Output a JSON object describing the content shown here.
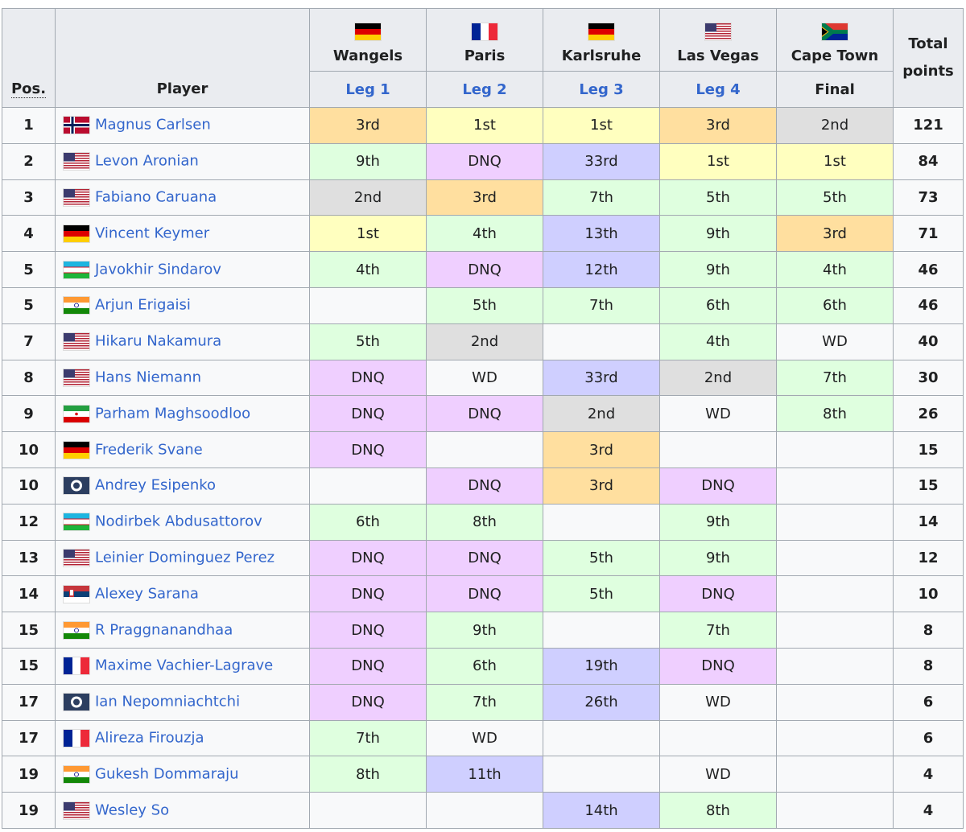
{
  "header": {
    "pos": "Pos.",
    "player": "Player",
    "total": "Total points",
    "venues": [
      {
        "city": "Wangels",
        "stage": "Leg 1"
      },
      {
        "city": "Paris",
        "stage": "Leg 2"
      },
      {
        "city": "Karlsruhe",
        "stage": "Leg 3"
      },
      {
        "city": "Las Vegas",
        "stage": "Leg 4"
      },
      {
        "city": "Cape Town",
        "stage": "Final"
      }
    ]
  },
  "rows": [
    {
      "pos": 1,
      "player": "Magnus Carlsen",
      "results": [
        "3rd",
        "1st",
        "1st",
        "3rd",
        "2nd"
      ],
      "total": 121
    },
    {
      "pos": 2,
      "player": "Levon Aronian",
      "results": [
        "9th",
        "DNQ",
        "33rd",
        "1st",
        "1st"
      ],
      "total": 84
    },
    {
      "pos": 3,
      "player": "Fabiano Caruana",
      "results": [
        "2nd",
        "3rd",
        "7th",
        "5th",
        "5th"
      ],
      "total": 73
    },
    {
      "pos": 4,
      "player": "Vincent Keymer",
      "results": [
        "1st",
        "4th",
        "13th",
        "9th",
        "3rd"
      ],
      "total": 71
    },
    {
      "pos": 5,
      "player": "Javokhir Sindarov",
      "results": [
        "4th",
        "DNQ",
        "12th",
        "9th",
        "4th"
      ],
      "total": 46
    },
    {
      "pos": 5,
      "player": "Arjun Erigaisi",
      "results": [
        null,
        "5th",
        "7th",
        "6th",
        "6th"
      ],
      "total": 46
    },
    {
      "pos": 7,
      "player": "Hikaru Nakamura",
      "results": [
        "5th",
        "2nd",
        null,
        "4th",
        "WD"
      ],
      "total": 40
    },
    {
      "pos": 8,
      "player": "Hans Niemann",
      "results": [
        "DNQ",
        "WD",
        "33rd",
        "2nd",
        "7th"
      ],
      "total": 30
    },
    {
      "pos": 9,
      "player": "Parham Maghsoodloo",
      "results": [
        "DNQ",
        "DNQ",
        "2nd",
        "WD",
        "8th"
      ],
      "total": 26
    },
    {
      "pos": 10,
      "player": "Frederik Svane",
      "results": [
        "DNQ",
        null,
        "3rd",
        null,
        null
      ],
      "total": 15
    },
    {
      "pos": 10,
      "player": "Andrey Esipenko",
      "results": [
        null,
        "DNQ",
        "3rd",
        "DNQ",
        null
      ],
      "total": 15
    },
    {
      "pos": 12,
      "player": "Nodirbek Abdusattorov",
      "results": [
        "6th",
        "8th",
        null,
        "9th",
        null
      ],
      "total": 14
    },
    {
      "pos": 13,
      "player": "Leinier Dominguez Perez",
      "results": [
        "DNQ",
        "DNQ",
        "5th",
        "9th",
        null
      ],
      "total": 12
    },
    {
      "pos": 14,
      "player": "Alexey Sarana",
      "results": [
        "DNQ",
        "DNQ",
        "5th",
        "DNQ",
        null
      ],
      "total": 10
    },
    {
      "pos": 15,
      "player": "R Praggnanandhaa",
      "results": [
        "DNQ",
        "9th",
        null,
        "7th",
        null
      ],
      "total": 8
    },
    {
      "pos": 15,
      "player": "Maxime Vachier-Lagrave",
      "results": [
        "DNQ",
        "6th",
        "19th",
        "DNQ",
        null
      ],
      "total": 8
    },
    {
      "pos": 17,
      "player": "Ian Nepomniachtchi",
      "results": [
        "DNQ",
        "7th",
        "26th",
        "WD",
        null
      ],
      "total": 6
    },
    {
      "pos": 17,
      "player": "Alireza Firouzja",
      "results": [
        "7th",
        "WD",
        null,
        null,
        null
      ],
      "total": 6
    },
    {
      "pos": 19,
      "player": "Gukesh Dommaraju",
      "results": [
        "8th",
        "11th",
        null,
        "WD",
        null
      ],
      "total": 4
    },
    {
      "pos": 19,
      "player": "Wesley So",
      "results": [
        null,
        null,
        "14th",
        "8th",
        null
      ],
      "total": 4
    }
  ]
}
